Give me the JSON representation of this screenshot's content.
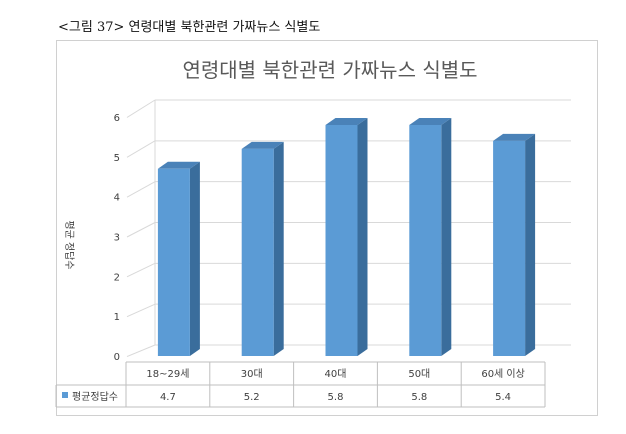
{
  "caption": "<그림 37> 연령대별 북한관련 가짜뉴스 식별도",
  "chart_data": {
    "type": "bar",
    "title": "연령대별 북한관련 가짜뉴스 식별도",
    "ylabel": "평균 정답수",
    "categories": [
      "18~29세",
      "30대",
      "40대",
      "50대",
      "60세 이상"
    ],
    "series": [
      {
        "name": "평균정답수",
        "values": [
          4.7,
          5.2,
          5.8,
          5.8,
          5.4
        ]
      }
    ],
    "ylim": [
      0,
      6
    ],
    "yticks": [
      0,
      1,
      2,
      3,
      4,
      5,
      6
    ],
    "grid": true,
    "legend": "data-table",
    "colors": {
      "bar_front": "#5b9bd5",
      "bar_side": "#3a6d9c",
      "bar_top": "#4a82b8",
      "grid": "#d9d9d9"
    }
  }
}
